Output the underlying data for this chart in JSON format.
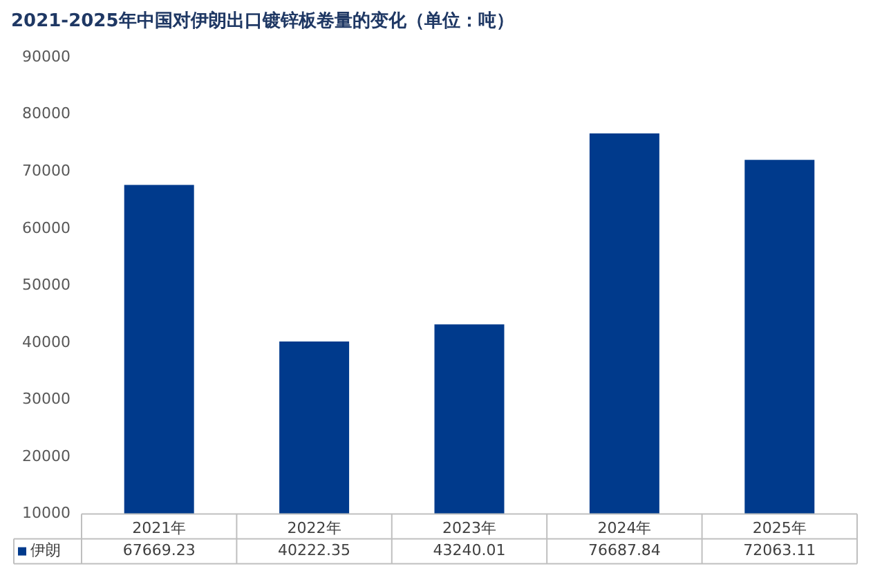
{
  "chart_data": {
    "type": "bar",
    "title": "2021-2025年中国对伊朗出口镀锌板卷量的变化（单位：吨）",
    "categories": [
      "2021年",
      "2022年",
      "2023年",
      "2024年",
      "2025年"
    ],
    "series": [
      {
        "name": "伊朗",
        "color": "#003a8c",
        "values": [
          67669.23,
          40222.35,
          43240.01,
          76687.84,
          72063.11
        ]
      }
    ],
    "ylim": [
      10000,
      90000
    ],
    "yticks": [
      10000,
      20000,
      30000,
      40000,
      50000,
      60000,
      70000,
      80000,
      90000
    ],
    "grid": false,
    "legend": "bottom left",
    "data_labels": true
  }
}
